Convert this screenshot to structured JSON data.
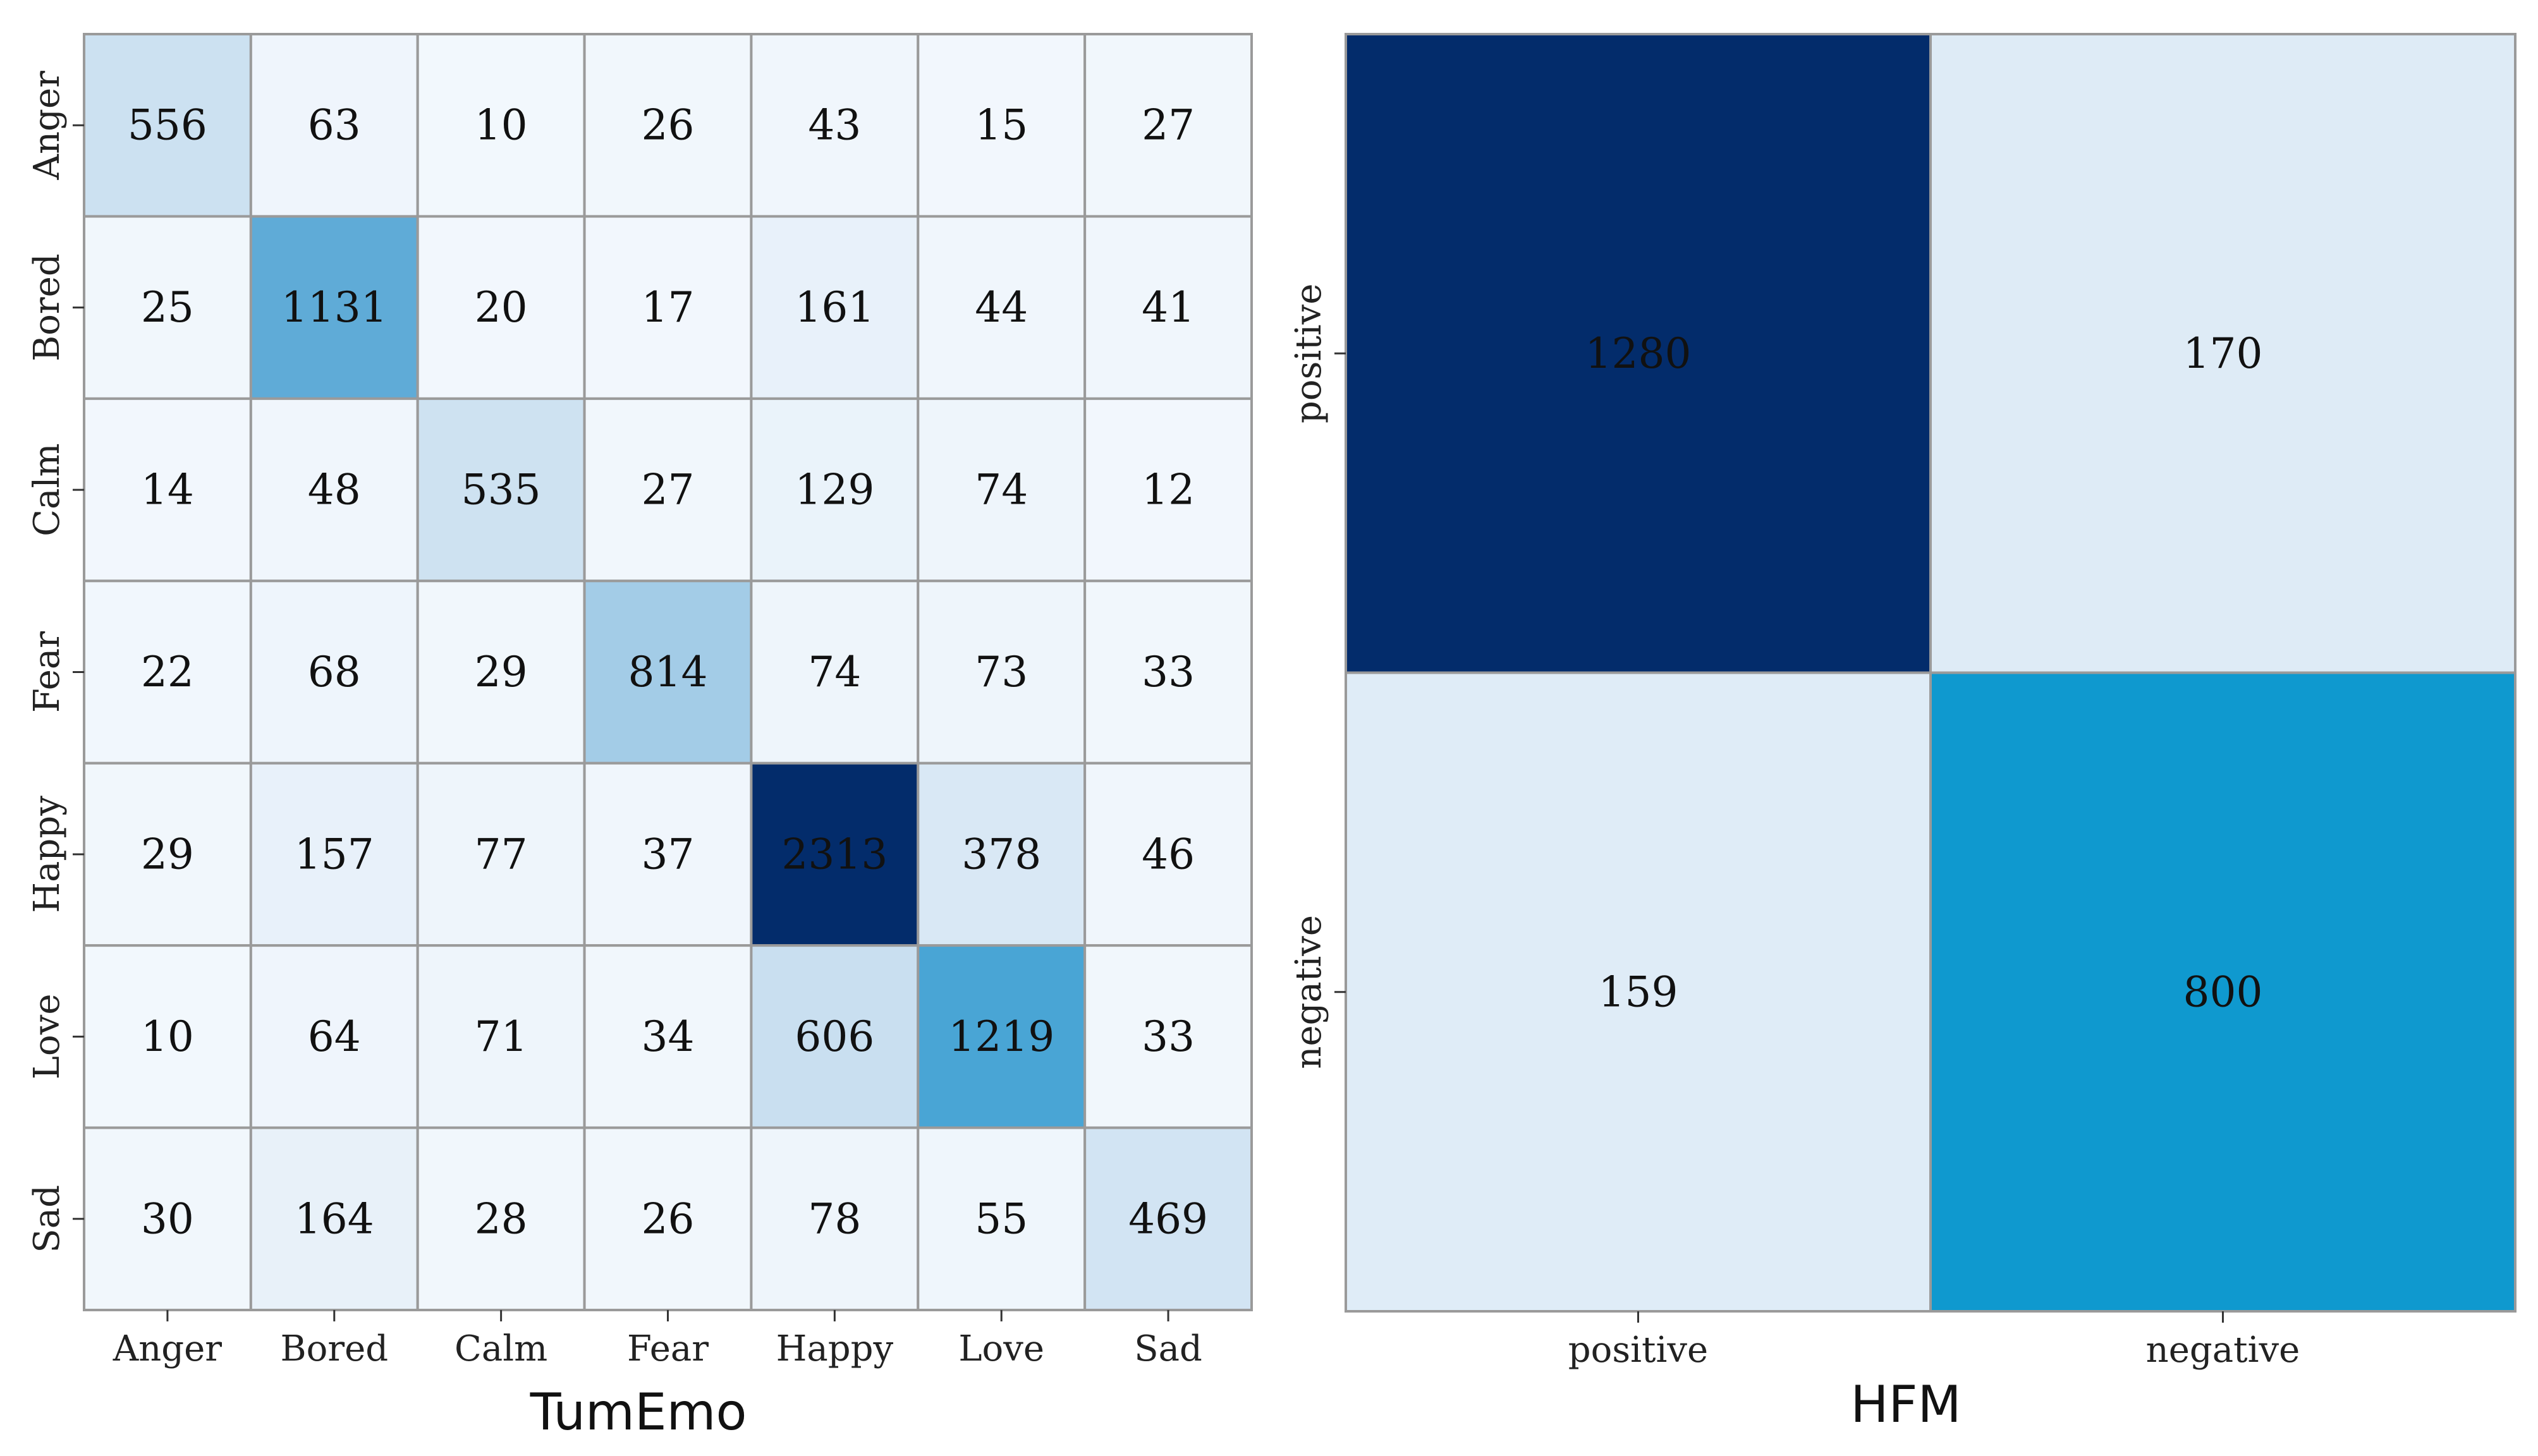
{
  "chart_data": [
    {
      "type": "heatmap",
      "title": "TumEmo",
      "row_labels": [
        "Anger",
        "Bored",
        "Calm",
        "Fear",
        "Happy",
        "Love",
        "Sad"
      ],
      "col_labels": [
        "Anger",
        "Bored",
        "Calm",
        "Fear",
        "Happy",
        "Love",
        "Sad"
      ],
      "values": [
        [
          556,
          63,
          10,
          26,
          43,
          15,
          27
        ],
        [
          25,
          1131,
          20,
          17,
          161,
          44,
          41
        ],
        [
          14,
          48,
          535,
          27,
          129,
          74,
          12
        ],
        [
          22,
          68,
          29,
          814,
          74,
          73,
          33
        ],
        [
          29,
          157,
          77,
          37,
          2313,
          378,
          46
        ],
        [
          10,
          64,
          71,
          34,
          606,
          1219,
          33
        ],
        [
          30,
          164,
          28,
          26,
          78,
          55,
          469
        ]
      ],
      "colormap": "Blues",
      "vmin": 0,
      "vmax": 2313
    },
    {
      "type": "heatmap",
      "title": "HFM",
      "row_labels": [
        "positive",
        "negative"
      ],
      "col_labels": [
        "positive",
        "negative"
      ],
      "values": [
        [
          1280,
          170
        ],
        [
          159,
          800
        ]
      ],
      "colormap": "Blues",
      "vmin": 0,
      "vmax": 1280
    }
  ],
  "colors": {
    "cmap_low": "#f3f8fd",
    "cmap_mid1": "#c6ddef",
    "cmap_mid2": "#5aa8d6",
    "cmap_mid3": "#0f9ad0",
    "cmap_high": "#032c6b",
    "grid": "#9a9a9a",
    "text_dark": "#111111",
    "text_light": "#111111"
  }
}
